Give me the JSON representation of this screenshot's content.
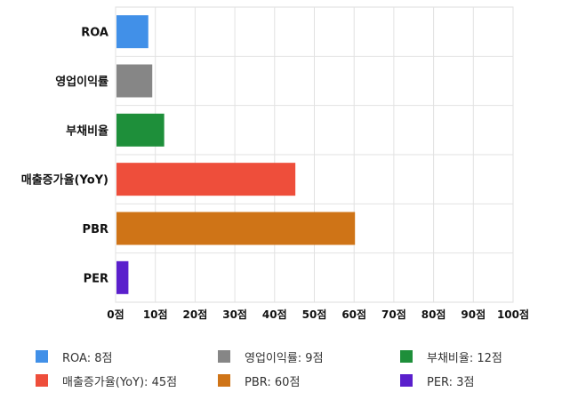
{
  "chart_data": {
    "type": "bar",
    "orientation": "horizontal",
    "categories": [
      "ROA",
      "영업이익률",
      "부채비율",
      "매출증가율(YoY)",
      "PBR",
      "PER"
    ],
    "values": [
      8,
      9,
      12,
      45,
      60,
      3
    ],
    "colors": [
      "#4190e8",
      "#868686",
      "#1e8f3a",
      "#ee4e3b",
      "#cf7417",
      "#5a1fcc"
    ],
    "xlim": [
      0,
      100
    ],
    "xticks": [
      "0점",
      "10점",
      "20점",
      "30점",
      "40점",
      "50점",
      "60점",
      "70점",
      "80점",
      "90점",
      "100점"
    ],
    "grid": true,
    "legend_position": "bottom",
    "legend": [
      "ROA: 8점",
      "영업이익률: 9점",
      "부채비율: 12점",
      "매출증가율(YoY): 45점",
      "PBR: 60점",
      "PER: 3점"
    ]
  }
}
